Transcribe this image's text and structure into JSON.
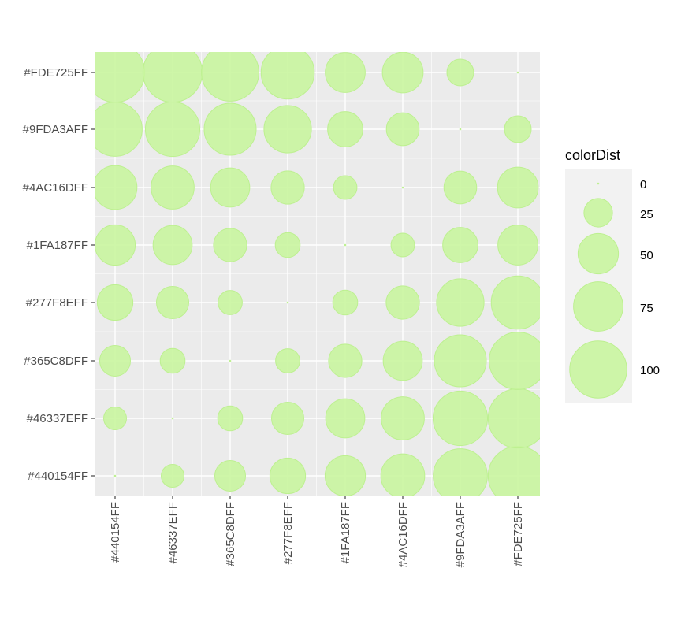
{
  "chart_data": {
    "type": "bubble",
    "title": "",
    "xlabel": "",
    "ylabel": "",
    "size_variable": "colorDist",
    "categories_x": [
      "#440154FF",
      "#46337EFF",
      "#365C8DFF",
      "#277F8EFF",
      "#1FA187FF",
      "#4AC16DFF",
      "#9FDA3AFF",
      "#FDE725FF"
    ],
    "categories_y": [
      "#440154FF",
      "#46337EFF",
      "#365C8DFF",
      "#277F8EFF",
      "#1FA187FF",
      "#4AC16DFF",
      "#9FDA3AFF",
      "#FDE725FF"
    ],
    "values": [
      [
        0,
        16,
        29,
        39,
        50,
        59,
        90,
        108
      ],
      [
        16,
        0,
        19,
        32,
        47,
        57,
        91,
        108
      ],
      [
        29,
        19,
        0,
        18,
        34,
        47,
        83,
        101
      ],
      [
        39,
        32,
        18,
        0,
        19,
        34,
        69,
        87
      ],
      [
        50,
        47,
        34,
        19,
        0,
        17,
        38,
        49
      ],
      [
        59,
        57,
        47,
        34,
        17,
        0,
        33,
        51
      ],
      [
        90,
        91,
        83,
        69,
        38,
        33,
        0,
        22
      ],
      [
        108,
        108,
        101,
        87,
        49,
        51,
        22,
        0
      ]
    ],
    "legend": {
      "title": "colorDist",
      "position": "right",
      "breaks": [
        0,
        25,
        50,
        75,
        100
      ],
      "labels": [
        "0",
        "25",
        "50",
        "75",
        "100"
      ]
    },
    "size_range_value": [
      0,
      110
    ],
    "bubble_fill": "#c9f5a0",
    "bubble_stroke": "#bdf090",
    "bubble_alpha": 0.9,
    "panel_background": "#ebebeb",
    "grid_color": "#ffffff",
    "legend_key_background": "#f2f2f2",
    "grid": true
  }
}
